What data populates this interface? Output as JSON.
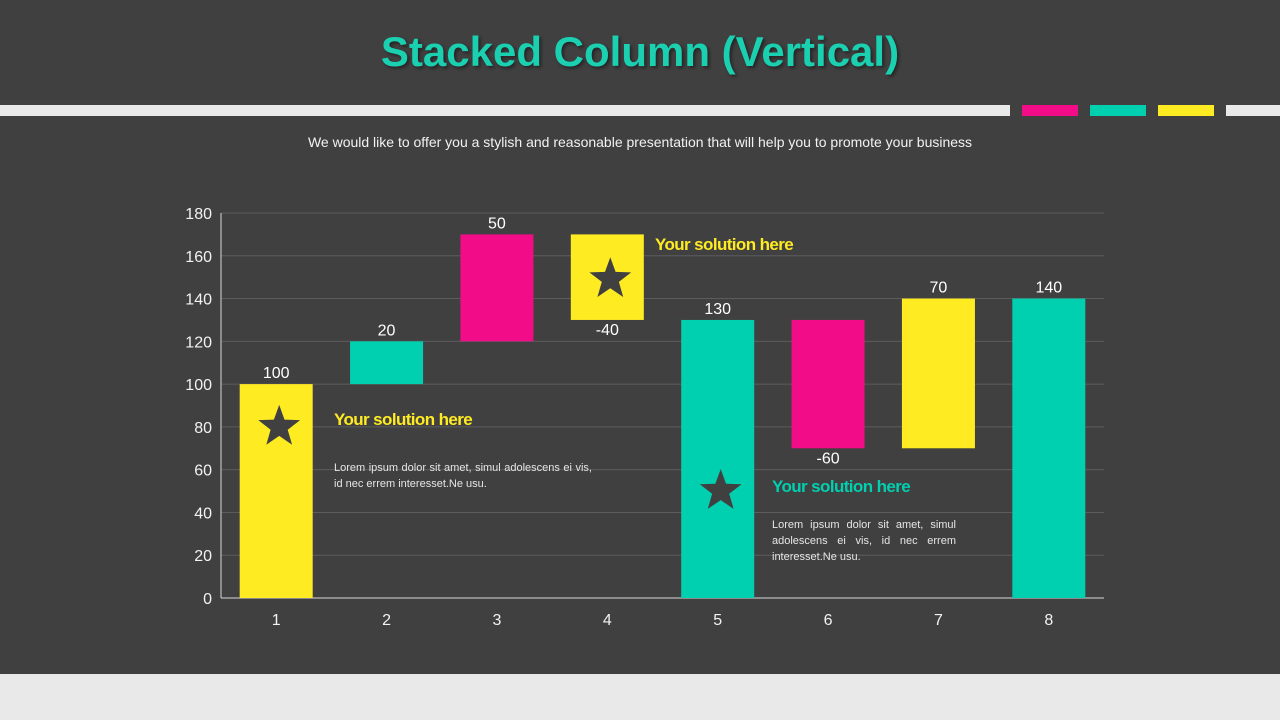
{
  "slide": {
    "title": "Stacked Column (Vertical)",
    "subtitle": "We would like to offer you a stylish and reasonable presentation that will help you to promote your business"
  },
  "colors": {
    "background": "#404040",
    "accent_teal": "#00CFB0",
    "accent_pink": "#F20C88",
    "accent_yellow": "#FFEB22",
    "band_light": "#E9E9E9"
  },
  "callouts": [
    {
      "title": "Your solution here",
      "body": "",
      "color": "#FFEB22"
    },
    {
      "title": "Your solution here",
      "body": "Lorem ipsum dolor sit amet, simul adolescens ei vis, id nec errem interesset.Ne usu.",
      "color": "#FFEB22"
    },
    {
      "title": "Your solution here",
      "body": "Lorem ipsum dolor sit amet, simul adolescens ei vis, id nec errem interesset.Ne usu.",
      "color": "#00CFB0"
    }
  ],
  "chart_data": {
    "type": "bar",
    "subtype": "waterfall (stacked column)",
    "categories": [
      "1",
      "2",
      "3",
      "4",
      "5",
      "6",
      "7",
      "8"
    ],
    "series": [
      {
        "values": [
          0,
          100,
          120,
          130,
          0,
          70,
          70,
          0
        ],
        "color": "transparent"
      },
      {
        "values": [
          100,
          20,
          50,
          40,
          130,
          60,
          70,
          140
        ],
        "colors": [
          "#FFEB22",
          "#00CFB0",
          "#F20C88",
          "#FFEB22",
          "#00CFB0",
          "#F20C88",
          "#FFEB22",
          "#00CFB0"
        ]
      }
    ],
    "data_labels": [
      "100",
      "20",
      "50",
      "-40",
      "130",
      "-60",
      "70",
      "140"
    ],
    "data_label_position": [
      "top",
      "top",
      "top",
      "bottom",
      "top",
      "bottom",
      "top",
      "top"
    ],
    "stars_on": [
      "1",
      "4",
      "5"
    ],
    "yticks": [
      "0",
      "20",
      "40",
      "60",
      "80",
      "100",
      "120",
      "140",
      "160",
      "180"
    ],
    "ylim": [
      0,
      180
    ],
    "grid": true,
    "legend": "none",
    "xlabel": "",
    "ylabel": ""
  }
}
